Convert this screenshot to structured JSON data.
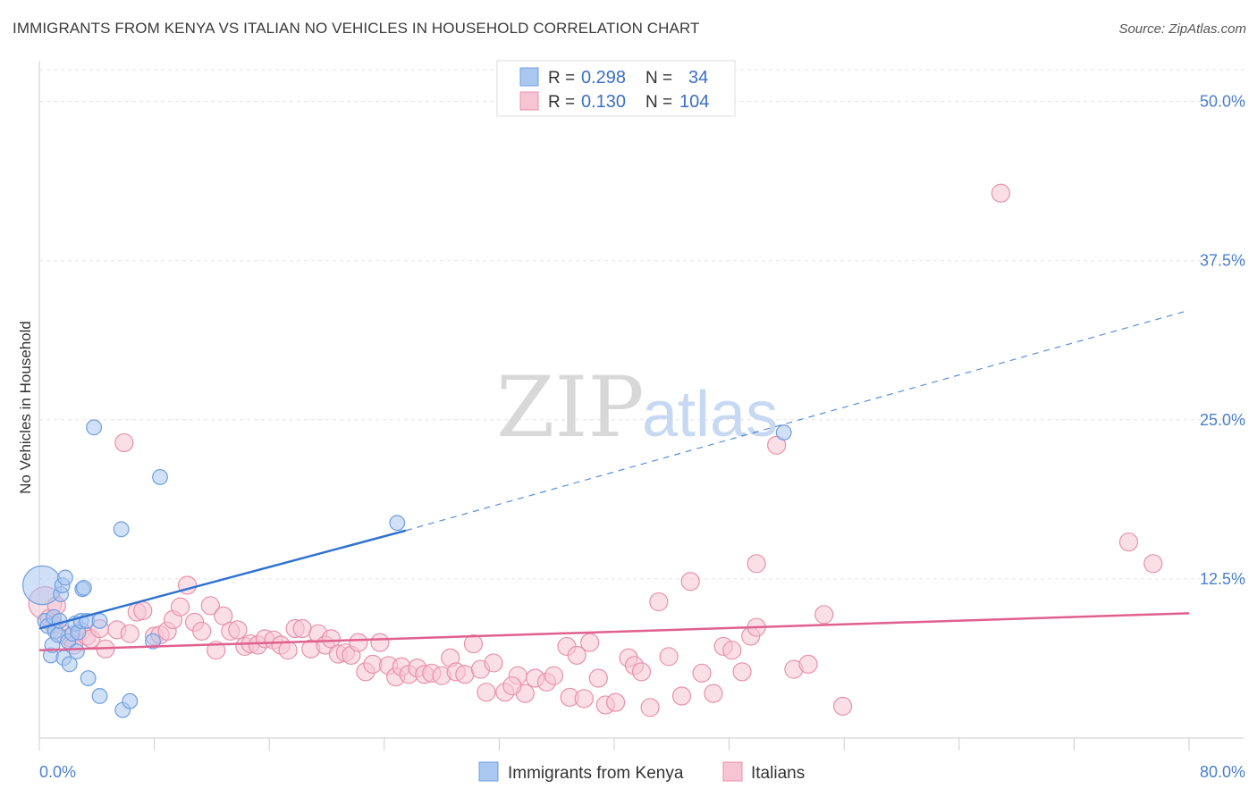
{
  "header": {
    "title": "IMMIGRANTS FROM KENYA VS ITALIAN NO VEHICLES IN HOUSEHOLD CORRELATION CHART",
    "source": "Source: ZipAtlas.com"
  },
  "watermark": {
    "zip": "ZIP",
    "atlas": "atlas"
  },
  "chart_data": {
    "type": "scatter",
    "title": "IMMIGRANTS FROM KENYA VS ITALIAN NO VEHICLES IN HOUSEHOLD CORRELATION CHART",
    "ylabel": "No Vehicles in Household",
    "xlabel": "",
    "xlim": [
      0,
      80
    ],
    "ylim": [
      0,
      52.5
    ],
    "x_tick_labels": [
      {
        "value": 0,
        "label": "0.0%"
      },
      {
        "value": 80,
        "label": "80.0%"
      }
    ],
    "x_minor_ticks": [
      8,
      16,
      24,
      32,
      40,
      48,
      56,
      64,
      72,
      80
    ],
    "y_tick_labels": [
      {
        "value": 12.5,
        "label": "12.5%"
      },
      {
        "value": 25.0,
        "label": "25.0%"
      },
      {
        "value": 37.5,
        "label": "37.5%"
      },
      {
        "value": 50.0,
        "label": "50.0%"
      }
    ],
    "grid": true,
    "legend_position": "top-center",
    "series": [
      {
        "name": "Immigrants from Kenya",
        "color": "#6f9fe0",
        "fill": "#a9c7f0",
        "R": "0.298",
        "N": "34",
        "trend": {
          "x0": 0,
          "y0": 8.6,
          "x1": 25.5,
          "y1": 16.3,
          "dash_to_x": 80,
          "dash_to_y": 33.6,
          "color": "#2f72d0"
        },
        "points": [
          [
            0.2,
            12.0,
            26
          ],
          [
            0.4,
            9.2,
            10
          ],
          [
            0.6,
            8.8,
            10
          ],
          [
            0.8,
            6.5,
            10
          ],
          [
            0.9,
            7.3,
            10
          ],
          [
            1.0,
            9.5,
            10
          ],
          [
            1.1,
            8.4,
            10
          ],
          [
            1.3,
            8.1,
            10
          ],
          [
            1.4,
            9.2,
            10
          ],
          [
            1.5,
            11.3,
            10
          ],
          [
            1.6,
            12.0,
            10
          ],
          [
            1.7,
            6.3,
            10
          ],
          [
            1.8,
            12.6,
            10
          ],
          [
            2.0,
            7.6,
            10
          ],
          [
            2.1,
            5.8,
            10
          ],
          [
            2.3,
            8.2,
            10
          ],
          [
            2.5,
            9.0,
            10
          ],
          [
            2.6,
            6.8,
            10
          ],
          [
            2.7,
            8.3,
            10
          ],
          [
            2.9,
            9.2,
            10
          ],
          [
            3.0,
            11.7,
            10
          ],
          [
            3.3,
            9.2,
            10
          ],
          [
            3.1,
            11.8,
            10
          ],
          [
            3.4,
            4.7,
            10
          ],
          [
            3.8,
            24.4,
            10
          ],
          [
            4.2,
            9.2,
            10
          ],
          [
            4.2,
            3.3,
            10
          ],
          [
            5.7,
            16.4,
            10
          ],
          [
            5.8,
            2.2,
            10
          ],
          [
            6.3,
            2.9,
            10
          ],
          [
            7.9,
            7.6,
            10
          ],
          [
            8.4,
            20.5,
            10
          ],
          [
            24.9,
            16.9,
            10
          ],
          [
            51.8,
            24.0,
            10
          ]
        ]
      },
      {
        "name": "Italians",
        "color": "#e890ac",
        "fill": "#f7c4d3",
        "R": "0.130",
        "N": "104",
        "trend": {
          "x0": 0,
          "y0": 6.9,
          "x1": 80,
          "y1": 9.8,
          "color": "#e0608e"
        },
        "points": [
          [
            0.4,
            10.6,
            22
          ],
          [
            0.7,
            9.4,
            12
          ],
          [
            1.0,
            8.9,
            12
          ],
          [
            1.2,
            10.4,
            12
          ],
          [
            1.6,
            8.2,
            12
          ],
          [
            2.1,
            7.9,
            12
          ],
          [
            2.4,
            7.3,
            12
          ],
          [
            2.9,
            8.4,
            12
          ],
          [
            3.3,
            8.0,
            12
          ],
          [
            3.6,
            7.8,
            12
          ],
          [
            4.2,
            8.6,
            12
          ],
          [
            4.6,
            7.0,
            12
          ],
          [
            5.4,
            8.5,
            12
          ],
          [
            5.9,
            23.2,
            12
          ],
          [
            6.3,
            8.2,
            12
          ],
          [
            6.8,
            9.9,
            12
          ],
          [
            7.2,
            10.0,
            12
          ],
          [
            8.0,
            8.0,
            12
          ],
          [
            8.4,
            8.1,
            12
          ],
          [
            8.9,
            8.4,
            12
          ],
          [
            9.3,
            9.3,
            12
          ],
          [
            9.8,
            10.3,
            12
          ],
          [
            10.3,
            12.0,
            12
          ],
          [
            10.8,
            9.1,
            12
          ],
          [
            11.3,
            8.4,
            12
          ],
          [
            11.9,
            10.4,
            12
          ],
          [
            12.3,
            6.9,
            12
          ],
          [
            12.8,
            9.6,
            12
          ],
          [
            13.3,
            8.4,
            12
          ],
          [
            13.8,
            8.5,
            12
          ],
          [
            14.3,
            7.2,
            12
          ],
          [
            14.7,
            7.4,
            12
          ],
          [
            15.2,
            7.3,
            12
          ],
          [
            15.7,
            7.8,
            12
          ],
          [
            16.3,
            7.7,
            12
          ],
          [
            16.8,
            7.3,
            12
          ],
          [
            17.3,
            6.9,
            12
          ],
          [
            17.8,
            8.6,
            12
          ],
          [
            18.3,
            8.6,
            12
          ],
          [
            18.9,
            7.0,
            12
          ],
          [
            19.4,
            8.2,
            12
          ],
          [
            19.9,
            7.3,
            12
          ],
          [
            20.3,
            7.8,
            12
          ],
          [
            20.8,
            6.6,
            12
          ],
          [
            21.3,
            6.7,
            12
          ],
          [
            21.7,
            6.5,
            12
          ],
          [
            22.2,
            7.5,
            12
          ],
          [
            22.7,
            5.2,
            12
          ],
          [
            23.2,
            5.8,
            12
          ],
          [
            23.7,
            7.5,
            12
          ],
          [
            24.3,
            5.7,
            12
          ],
          [
            24.8,
            4.8,
            12
          ],
          [
            25.2,
            5.6,
            12
          ],
          [
            25.7,
            5.0,
            12
          ],
          [
            26.3,
            5.5,
            12
          ],
          [
            26.8,
            5.0,
            12
          ],
          [
            27.3,
            5.1,
            12
          ],
          [
            28.0,
            4.9,
            12
          ],
          [
            28.6,
            6.3,
            12
          ],
          [
            29.0,
            5.2,
            12
          ],
          [
            29.6,
            5.0,
            12
          ],
          [
            30.2,
            7.4,
            12
          ],
          [
            30.7,
            5.4,
            12
          ],
          [
            31.1,
            3.6,
            12
          ],
          [
            31.6,
            5.9,
            12
          ],
          [
            32.4,
            3.6,
            12
          ],
          [
            33.3,
            4.9,
            12
          ],
          [
            33.8,
            3.5,
            12
          ],
          [
            34.5,
            4.7,
            12
          ],
          [
            35.3,
            4.4,
            12
          ],
          [
            35.8,
            4.9,
            12
          ],
          [
            36.7,
            7.2,
            12
          ],
          [
            36.9,
            3.2,
            12
          ],
          [
            37.4,
            6.5,
            12
          ],
          [
            37.9,
            3.1,
            12
          ],
          [
            38.3,
            7.5,
            12
          ],
          [
            38.9,
            4.7,
            12
          ],
          [
            39.4,
            2.6,
            12
          ],
          [
            40.1,
            2.8,
            12
          ],
          [
            41.0,
            6.3,
            12
          ],
          [
            41.4,
            5.7,
            12
          ],
          [
            41.9,
            5.2,
            12
          ],
          [
            42.5,
            2.4,
            12
          ],
          [
            43.1,
            10.7,
            12
          ],
          [
            43.8,
            6.4,
            12
          ],
          [
            44.7,
            3.3,
            12
          ],
          [
            45.3,
            12.3,
            12
          ],
          [
            46.1,
            5.1,
            12
          ],
          [
            46.9,
            3.5,
            12
          ],
          [
            47.6,
            7.2,
            12
          ],
          [
            48.2,
            6.9,
            12
          ],
          [
            48.9,
            5.2,
            12
          ],
          [
            49.5,
            8.0,
            12
          ],
          [
            49.9,
            8.7,
            12
          ],
          [
            49.9,
            13.7,
            12
          ],
          [
            51.3,
            23.0,
            12
          ],
          [
            52.5,
            5.4,
            12
          ],
          [
            53.5,
            5.8,
            12
          ],
          [
            54.6,
            9.7,
            12
          ],
          [
            55.9,
            2.5,
            12
          ],
          [
            66.9,
            42.8,
            12
          ],
          [
            75.8,
            15.4,
            12
          ],
          [
            77.5,
            13.7,
            12
          ],
          [
            32.9,
            4.1,
            12
          ]
        ]
      }
    ]
  },
  "legend": {
    "r_label": "R =",
    "n_label": "N =",
    "rows": [
      {
        "r": "0.298",
        "n": "34"
      },
      {
        "r": "0.130",
        "n": "104"
      }
    ]
  },
  "bottom_legend": {
    "items": [
      "Immigrants from Kenya",
      "Italians"
    ]
  }
}
